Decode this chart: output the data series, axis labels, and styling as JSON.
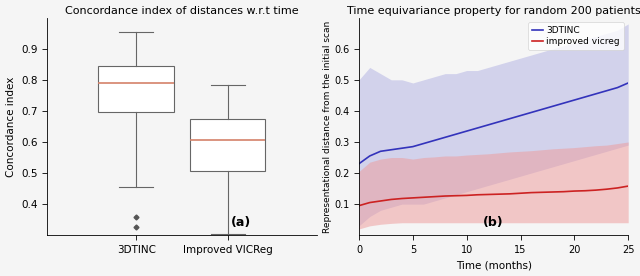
{
  "left_title": "Concordance index of distances w.r.t time",
  "left_ylabel": "Concordance index",
  "left_categories": [
    "3DTINC",
    "Improved VICReg"
  ],
  "box1": {
    "median": 0.79,
    "q1": 0.695,
    "q3": 0.845,
    "whisker_low": 0.455,
    "whisker_high": 0.955,
    "outliers": [
      0.358,
      0.325
    ]
  },
  "box2": {
    "median": 0.605,
    "q1": 0.505,
    "q3": 0.675,
    "whisker_low": 0.305,
    "whisker_high": 0.785,
    "outliers": []
  },
  "left_ylim": [
    0.3,
    1.0
  ],
  "left_yticks": [
    0.4,
    0.5,
    0.6,
    0.7,
    0.8,
    0.9
  ],
  "right_title": "Time equivariance property for random 200 patients",
  "right_xlabel": "Time (months)",
  "right_ylabel": "Representational distance from the initial scan",
  "right_xlim": [
    0,
    25
  ],
  "right_ylim": [
    0.0,
    0.7
  ],
  "right_yticks": [
    0.1,
    0.2,
    0.3,
    0.4,
    0.5,
    0.6
  ],
  "right_xticks": [
    0,
    5,
    10,
    15,
    20,
    25
  ],
  "time_x": [
    0,
    1,
    2,
    3,
    4,
    5,
    6,
    7,
    8,
    9,
    10,
    11,
    12,
    13,
    14,
    15,
    16,
    17,
    18,
    19,
    20,
    21,
    22,
    23,
    24,
    25
  ],
  "blue_mean": [
    0.23,
    0.255,
    0.27,
    0.275,
    0.28,
    0.285,
    0.295,
    0.305,
    0.315,
    0.325,
    0.335,
    0.345,
    0.355,
    0.365,
    0.375,
    0.385,
    0.395,
    0.405,
    0.415,
    0.425,
    0.435,
    0.445,
    0.455,
    0.465,
    0.475,
    0.49
  ],
  "blue_low": [
    0.03,
    0.06,
    0.08,
    0.09,
    0.1,
    0.1,
    0.1,
    0.11,
    0.12,
    0.13,
    0.14,
    0.15,
    0.16,
    0.17,
    0.18,
    0.19,
    0.2,
    0.21,
    0.22,
    0.23,
    0.24,
    0.25,
    0.26,
    0.27,
    0.28,
    0.29
  ],
  "blue_high": [
    0.5,
    0.54,
    0.52,
    0.5,
    0.5,
    0.49,
    0.5,
    0.51,
    0.52,
    0.52,
    0.53,
    0.53,
    0.54,
    0.55,
    0.56,
    0.57,
    0.58,
    0.59,
    0.6,
    0.61,
    0.62,
    0.63,
    0.64,
    0.65,
    0.66,
    0.68
  ],
  "red_mean": [
    0.095,
    0.105,
    0.11,
    0.115,
    0.118,
    0.12,
    0.122,
    0.124,
    0.126,
    0.127,
    0.128,
    0.13,
    0.131,
    0.132,
    0.133,
    0.135,
    0.137,
    0.138,
    0.139,
    0.14,
    0.142,
    0.143,
    0.145,
    0.148,
    0.152,
    0.158
  ],
  "red_low": [
    0.02,
    0.03,
    0.035,
    0.038,
    0.04,
    0.04,
    0.04,
    0.04,
    0.04,
    0.04,
    0.04,
    0.04,
    0.04,
    0.04,
    0.04,
    0.04,
    0.04,
    0.04,
    0.04,
    0.04,
    0.04,
    0.04,
    0.04,
    0.04,
    0.04,
    0.04
  ],
  "red_high": [
    0.205,
    0.235,
    0.245,
    0.25,
    0.25,
    0.245,
    0.25,
    0.252,
    0.255,
    0.255,
    0.258,
    0.26,
    0.262,
    0.265,
    0.268,
    0.27,
    0.272,
    0.275,
    0.278,
    0.28,
    0.282,
    0.285,
    0.288,
    0.29,
    0.295,
    0.3
  ],
  "blue_color": "#3333bb",
  "blue_fill": "#9999dd",
  "red_color": "#cc2222",
  "red_fill": "#ee9999",
  "box_color": "#666666",
  "median_color": "#d4826a",
  "outlier_color": "#555555",
  "label_a": "(a)",
  "label_b": "(b)",
  "legend_3dtinc": "3DTINC",
  "legend_vicreg": "improved vicreg"
}
